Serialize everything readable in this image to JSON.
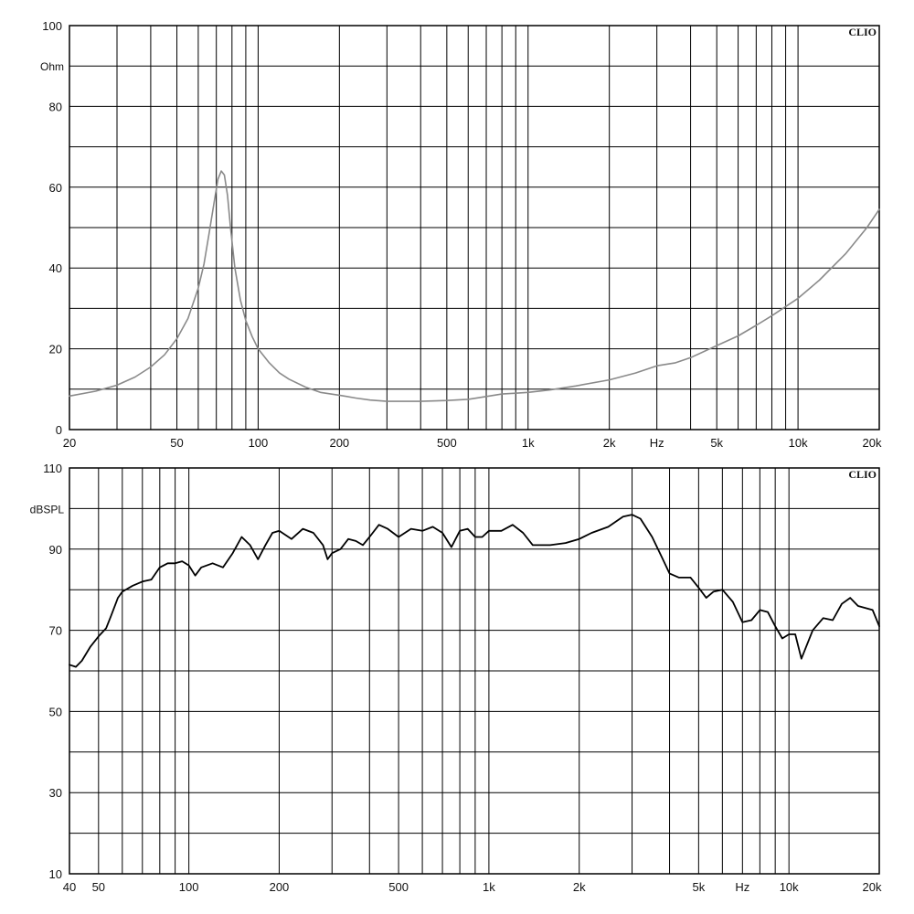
{
  "chart_data": [
    {
      "type": "line",
      "watermark": "CLIO",
      "x_scale": "log",
      "xlim": [
        20,
        20000
      ],
      "ylim": [
        0,
        100
      ],
      "ylabel": "Ohm",
      "x_unit_label": "Hz",
      "x_ticks": [
        {
          "value": 20,
          "label": "20"
        },
        {
          "value": 50,
          "label": "50"
        },
        {
          "value": 100,
          "label": "100"
        },
        {
          "value": 200,
          "label": "200"
        },
        {
          "value": 500,
          "label": "500"
        },
        {
          "value": 1000,
          "label": "1k"
        },
        {
          "value": 2000,
          "label": "2k"
        },
        {
          "value": 5000,
          "label": "5k"
        },
        {
          "value": 10000,
          "label": "10k"
        },
        {
          "value": 20000,
          "label": "20k"
        }
      ],
      "x_unit_at": 3000,
      "y_ticks": [
        {
          "value": 0,
          "label": "0"
        },
        {
          "value": 20,
          "label": "20"
        },
        {
          "value": 40,
          "label": "40"
        },
        {
          "value": 60,
          "label": "60"
        },
        {
          "value": 80,
          "label": "80"
        },
        {
          "value": 100,
          "label": "100"
        }
      ],
      "ylabel_at": 90,
      "grid": true,
      "line_color": "#8a8a8a",
      "series": [
        {
          "x": [
            20,
            25,
            30,
            35,
            40,
            45,
            50,
            55,
            60,
            63,
            66,
            69,
            71,
            73,
            75,
            77,
            79,
            82,
            86,
            90,
            95,
            100,
            110,
            120,
            130,
            150,
            170,
            200,
            230,
            260,
            300,
            350,
            400,
            500,
            600,
            700,
            800,
            900,
            1000,
            1200,
            1500,
            2000,
            2500,
            3000,
            3500,
            4000,
            5000,
            6000,
            7000,
            8000,
            10000,
            12000,
            15000,
            18000,
            20000
          ],
          "y": [
            8.3,
            9.5,
            11,
            13,
            15.5,
            18.5,
            22.5,
            27.5,
            35,
            41,
            49,
            57,
            62,
            64,
            63,
            58,
            50,
            40,
            32,
            27,
            23,
            20,
            16.5,
            14,
            12.5,
            10.5,
            9.2,
            8.5,
            7.8,
            7.3,
            7,
            7,
            7,
            7.2,
            7.5,
            8.2,
            8.8,
            9,
            9.2,
            9.8,
            10.8,
            12.3,
            14,
            15.8,
            16.5,
            17.8,
            20.8,
            23.2,
            25.8,
            28.2,
            32.5,
            37,
            43.5,
            50,
            54.5
          ]
        }
      ]
    },
    {
      "type": "line",
      "watermark": "CLIO",
      "x_scale": "log",
      "xlim": [
        40,
        20000
      ],
      "ylim": [
        10,
        110
      ],
      "ylabel": "dBSPL",
      "x_unit_label": "Hz",
      "x_ticks": [
        {
          "value": 40,
          "label": "40"
        },
        {
          "value": 50,
          "label": "50"
        },
        {
          "value": 100,
          "label": "100"
        },
        {
          "value": 200,
          "label": "200"
        },
        {
          "value": 500,
          "label": "500"
        },
        {
          "value": 1000,
          "label": "1k"
        },
        {
          "value": 2000,
          "label": "2k"
        },
        {
          "value": 5000,
          "label": "5k"
        },
        {
          "value": 10000,
          "label": "10k"
        },
        {
          "value": 20000,
          "label": "20k"
        }
      ],
      "x_unit_at": 7000,
      "y_ticks": [
        {
          "value": 10,
          "label": "10"
        },
        {
          "value": 30,
          "label": "30"
        },
        {
          "value": 50,
          "label": "50"
        },
        {
          "value": 70,
          "label": "70"
        },
        {
          "value": 90,
          "label": "90"
        },
        {
          "value": 110,
          "label": "110"
        }
      ],
      "ylabel_at": 100,
      "grid": true,
      "line_color": "#000000",
      "series": [
        {
          "x": [
            40,
            42,
            44,
            47,
            50,
            53,
            55,
            58,
            60,
            65,
            70,
            75,
            80,
            85,
            90,
            95,
            100,
            105,
            110,
            120,
            130,
            140,
            150,
            160,
            170,
            180,
            190,
            200,
            220,
            240,
            260,
            280,
            290,
            300,
            320,
            340,
            360,
            380,
            400,
            430,
            460,
            500,
            550,
            600,
            650,
            700,
            750,
            800,
            850,
            900,
            950,
            1000,
            1100,
            1200,
            1300,
            1400,
            1500,
            1600,
            1800,
            2000,
            2200,
            2500,
            2800,
            3000,
            3200,
            3500,
            3800,
            4000,
            4300,
            4700,
            5000,
            5300,
            5600,
            6000,
            6500,
            7000,
            7500,
            8000,
            8500,
            9000,
            9500,
            10000,
            10500,
            11000,
            12000,
            13000,
            14000,
            15000,
            16000,
            17000,
            18000,
            19000,
            20000
          ],
          "y": [
            61.5,
            61,
            62.5,
            66,
            68.5,
            70.5,
            73.5,
            78,
            79.5,
            81,
            82,
            82.5,
            85.5,
            86.5,
            86.5,
            87,
            86,
            83.5,
            85.5,
            86.5,
            85.5,
            89,
            93,
            91,
            87.5,
            91,
            94,
            94.5,
            92.5,
            95,
            94,
            91,
            87.5,
            89,
            90,
            92.5,
            92,
            91,
            93,
            96,
            95,
            93,
            95,
            94.5,
            95.5,
            94,
            90.5,
            94.5,
            95,
            93,
            93,
            94.5,
            94.5,
            96,
            94,
            91,
            91,
            91,
            91.5,
            92.5,
            94,
            95.5,
            98,
            98.5,
            97.5,
            93,
            87.5,
            84,
            83,
            83,
            80.5,
            78,
            79.5,
            80,
            77,
            72,
            72.5,
            75,
            74.5,
            71,
            68,
            69,
            69,
            63,
            70,
            73,
            72.5,
            76.5,
            78,
            76,
            75.5,
            75,
            71
          ]
        }
      ]
    }
  ]
}
